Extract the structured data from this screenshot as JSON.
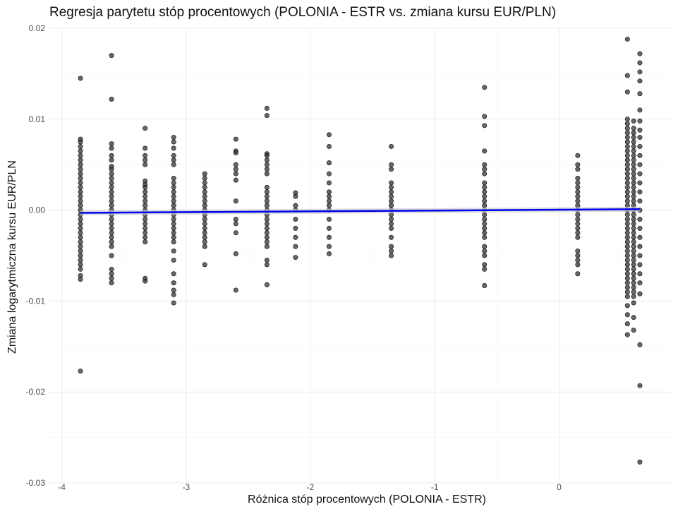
{
  "chart_data": {
    "type": "scatter",
    "title": "Regresja parytetu stóp procentowych (POLONIA - ESTR vs. zmiana kursu EUR/PLN)",
    "xlabel": "Różnica stóp procentowych (POLONIA - ESTR)",
    "ylabel": "Zmiana logarytmiczna kursu EUR/PLN",
    "xlim": [
      -4.1,
      0.9
    ],
    "ylim": [
      -0.03,
      0.02
    ],
    "x_ticks": [
      -4,
      -3,
      -2,
      -1,
      0
    ],
    "x_tick_labels": [
      "-4",
      "-3",
      "-2",
      "-1",
      "0"
    ],
    "y_ticks": [
      -0.03,
      -0.02,
      -0.01,
      0.0,
      0.01,
      0.02
    ],
    "y_tick_labels": [
      "-0.03",
      "-0.02",
      "-0.01",
      "0.00",
      "0.01",
      "0.02"
    ],
    "grid": true,
    "point_color": "#333333",
    "line_color": "#0000ee",
    "regression_line": {
      "x": [
        -3.85,
        0.65
      ],
      "y": [
        -0.0003,
        0.0001
      ]
    },
    "groups": [
      {
        "x": -3.85,
        "y": [
          0.0145,
          0.0078,
          0.0075,
          0.007,
          0.0065,
          0.006,
          0.0055,
          0.005,
          0.0045,
          0.004,
          0.0035,
          0.003,
          0.0025,
          0.002,
          0.0015,
          0.001,
          0.0005,
          0.0,
          -0.0005,
          -0.001,
          -0.0015,
          -0.002,
          -0.0025,
          -0.003,
          -0.0035,
          -0.004,
          -0.0045,
          -0.005,
          -0.0055,
          -0.006,
          -0.0065,
          -0.0072,
          -0.0076,
          -0.0177
        ]
      },
      {
        "x": -3.6,
        "y": [
          0.017,
          0.0122,
          0.0073,
          0.0068,
          0.006,
          0.0055,
          0.0048,
          0.0045,
          0.004,
          0.0035,
          0.003,
          0.0025,
          0.002,
          0.0015,
          0.001,
          0.0005,
          0.0,
          -0.0005,
          -0.001,
          -0.0015,
          -0.002,
          -0.0025,
          -0.003,
          -0.0035,
          -0.004,
          -0.005,
          -0.0065,
          -0.007,
          -0.0075,
          -0.008
        ]
      },
      {
        "x": -3.33,
        "y": [
          0.009,
          0.0068,
          0.006,
          0.0055,
          0.005,
          0.0032,
          0.0028,
          0.0025,
          0.002,
          0.0015,
          0.001,
          0.0005,
          0.0,
          -0.0005,
          -0.001,
          -0.0015,
          -0.002,
          -0.0025,
          -0.003,
          -0.0035,
          -0.0075,
          -0.0078
        ]
      },
      {
        "x": -3.1,
        "y": [
          0.008,
          0.0075,
          0.0068,
          0.006,
          0.0055,
          0.005,
          0.0035,
          0.003,
          0.0025,
          0.002,
          0.0015,
          0.001,
          0.0005,
          0.0,
          -0.0005,
          -0.001,
          -0.0015,
          -0.002,
          -0.0025,
          -0.003,
          -0.0035,
          -0.0045,
          -0.0055,
          -0.007,
          -0.008,
          -0.0088,
          -0.0093,
          -0.0102
        ]
      },
      {
        "x": -2.85,
        "y": [
          0.004,
          0.0035,
          0.003,
          0.0025,
          0.002,
          0.0015,
          0.001,
          0.0005,
          0.0,
          -0.0005,
          -0.001,
          -0.0015,
          -0.002,
          -0.0025,
          -0.003,
          -0.0035,
          -0.004,
          -0.006
        ]
      },
      {
        "x": -2.6,
        "y": [
          0.0078,
          0.0065,
          0.0063,
          0.005,
          0.0045,
          0.004,
          0.0033,
          0.001,
          -0.001,
          -0.0015,
          -0.0025,
          -0.0048,
          -0.0088
        ]
      },
      {
        "x": -2.35,
        "y": [
          0.0112,
          0.0104,
          0.0062,
          0.006,
          0.0055,
          0.005,
          0.0045,
          0.004,
          0.0025,
          0.002,
          0.0015,
          0.001,
          0.0005,
          0.0,
          -0.0005,
          -0.001,
          -0.0015,
          -0.002,
          -0.0025,
          -0.003,
          -0.0035,
          -0.004,
          -0.0055,
          -0.006,
          -0.0082
        ]
      },
      {
        "x": -2.12,
        "y": [
          0.0019,
          0.0015,
          0.0005,
          0.0,
          -0.001,
          -0.002,
          -0.003,
          -0.004,
          -0.0052
        ]
      },
      {
        "x": -1.85,
        "y": [
          0.0083,
          0.007,
          0.0052,
          0.004,
          0.003,
          0.002,
          0.0015,
          0.001,
          0.0005,
          0.0,
          -0.001,
          -0.002,
          -0.003,
          -0.004,
          -0.0048
        ]
      },
      {
        "x": -1.35,
        "y": [
          0.007,
          0.005,
          0.0045,
          0.003,
          0.0025,
          0.002,
          0.0015,
          0.001,
          0.0005,
          0.0,
          -0.0005,
          -0.001,
          -0.0015,
          -0.002,
          -0.003,
          -0.004,
          -0.0045,
          -0.005
        ]
      },
      {
        "x": -0.6,
        "y": [
          0.0135,
          0.0103,
          0.0093,
          0.0065,
          0.005,
          0.0045,
          0.004,
          0.003,
          0.0025,
          0.002,
          0.0015,
          0.001,
          0.0005,
          0.0,
          -0.0005,
          -0.001,
          -0.0015,
          -0.002,
          -0.0025,
          -0.003,
          -0.004,
          -0.0045,
          -0.005,
          -0.006,
          -0.0065,
          -0.0083
        ]
      },
      {
        "x": 0.15,
        "y": [
          0.006,
          0.005,
          0.0045,
          0.0035,
          0.003,
          0.0025,
          0.002,
          0.0015,
          0.001,
          0.0005,
          0.0,
          -0.0005,
          -0.001,
          -0.0015,
          -0.002,
          -0.0025,
          -0.003,
          -0.0045,
          -0.005,
          -0.0055,
          -0.006,
          -0.007
        ]
      },
      {
        "x": 0.55,
        "y": [
          0.0188,
          0.0148,
          0.013,
          0.01,
          0.0095,
          0.009,
          0.0085,
          0.008,
          0.0075,
          0.007,
          0.0065,
          0.006,
          0.0055,
          0.005,
          0.0045,
          0.004,
          0.0035,
          0.003,
          0.0025,
          0.002,
          0.0015,
          0.001,
          0.0005,
          0.0,
          -0.0005,
          -0.001,
          -0.0015,
          -0.002,
          -0.0025,
          -0.003,
          -0.0035,
          -0.004,
          -0.0045,
          -0.005,
          -0.0055,
          -0.006,
          -0.0065,
          -0.007,
          -0.0075,
          -0.008,
          -0.0085,
          -0.009,
          -0.0095,
          -0.0105,
          -0.0115,
          -0.0125,
          -0.0137
        ]
      },
      {
        "x": 0.6,
        "y": [
          0.0098,
          0.009,
          0.0085,
          0.008,
          0.0075,
          0.007,
          0.0065,
          0.006,
          0.0055,
          0.005,
          0.0045,
          0.004,
          0.0035,
          0.003,
          0.0025,
          0.002,
          0.0015,
          0.001,
          0.0005,
          0.0,
          -0.0005,
          -0.001,
          -0.0015,
          -0.002,
          -0.0025,
          -0.003,
          -0.0035,
          -0.004,
          -0.0045,
          -0.005,
          -0.0055,
          -0.006,
          -0.0065,
          -0.007,
          -0.0075,
          -0.008,
          -0.0085,
          -0.009,
          -0.0095,
          -0.0102,
          -0.0118,
          -0.0132
        ]
      },
      {
        "x": 0.65,
        "y": [
          0.0172,
          0.0162,
          0.0152,
          0.0142,
          0.0128,
          0.011,
          0.0098,
          0.0088,
          0.008,
          0.007,
          0.006,
          0.005,
          0.004,
          0.003,
          0.002,
          0.001,
          0.0,
          -0.001,
          -0.002,
          -0.003,
          -0.004,
          -0.005,
          -0.006,
          -0.007,
          -0.008,
          -0.0092,
          -0.0148,
          -0.0193,
          -0.0277
        ]
      }
    ]
  }
}
